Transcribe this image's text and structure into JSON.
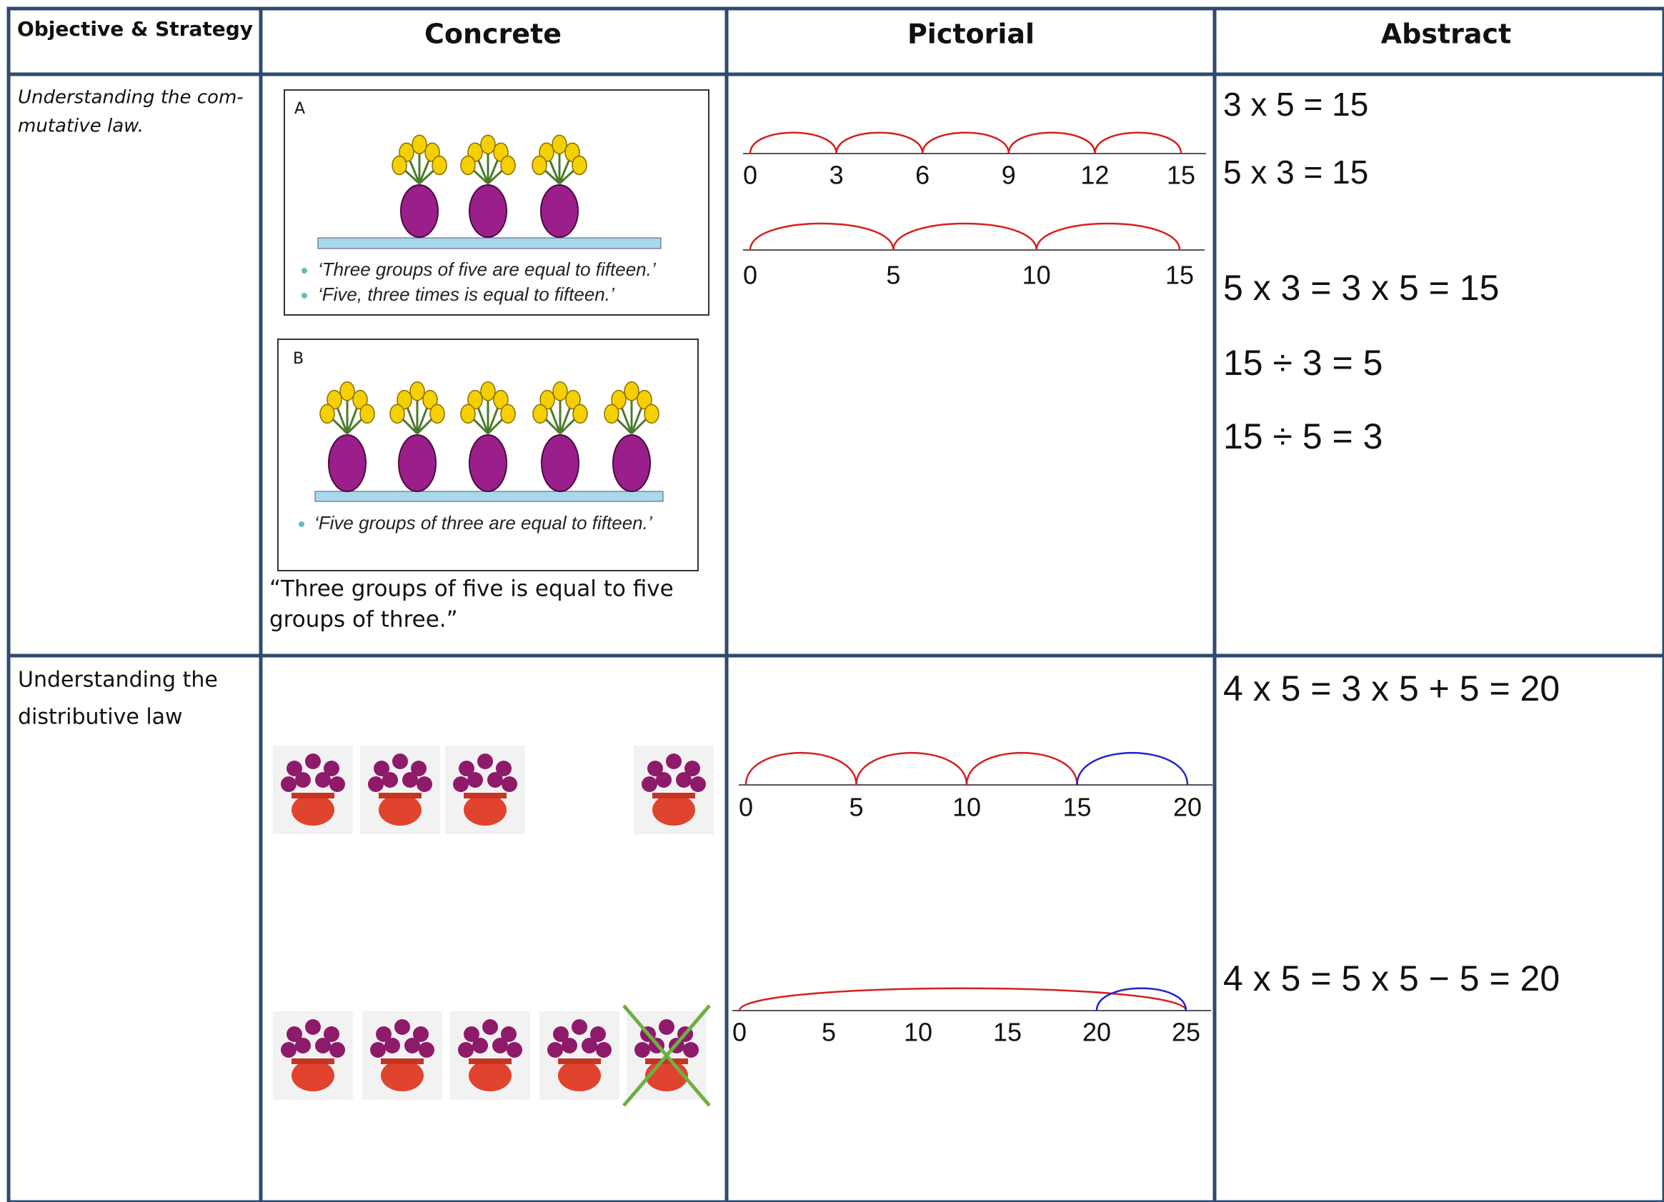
{
  "table": {
    "headers": [
      "Objective & Strategy",
      "Concrete",
      "Pictorial",
      "Abstract"
    ],
    "rows": [
      {
        "objective": [
          "Understanding the com-",
          "mutative law."
        ],
        "concrete": {
          "panels": [
            {
              "label": "A",
              "bullets": [
                "‘Three groups of five are equal to fifteen.’",
                "‘Five, three times is equal to fifteen.’"
              ]
            },
            {
              "label": "B",
              "bullets": [
                "‘Five groups of three are equal to fifteen.’"
              ]
            }
          ],
          "caption": [
            "“Three groups of five is equal to five",
            "groups of three.”"
          ]
        },
        "pictorial": [
          [
            0,
            3,
            6,
            9,
            12,
            15
          ],
          [
            0,
            5,
            10,
            15
          ]
        ],
        "abstract": [
          "3 x 5 = 15",
          "5 x 3 = 15",
          "5 x 3 = 3 x 5 = 15",
          "15 ÷ 3 = 5",
          "15 ÷ 5 = 3"
        ]
      },
      {
        "objective": [
          "Understanding the",
          "distributive law"
        ],
        "pictorial": [
          [
            0,
            5,
            10,
            15,
            20
          ],
          [
            0,
            5,
            10,
            15,
            20,
            25
          ]
        ],
        "abstract": [
          "4 x 5 = 3 x 5 + 5 = 20",
          "4 x 5 = 5 x 5 − 5 = 20"
        ]
      }
    ]
  }
}
